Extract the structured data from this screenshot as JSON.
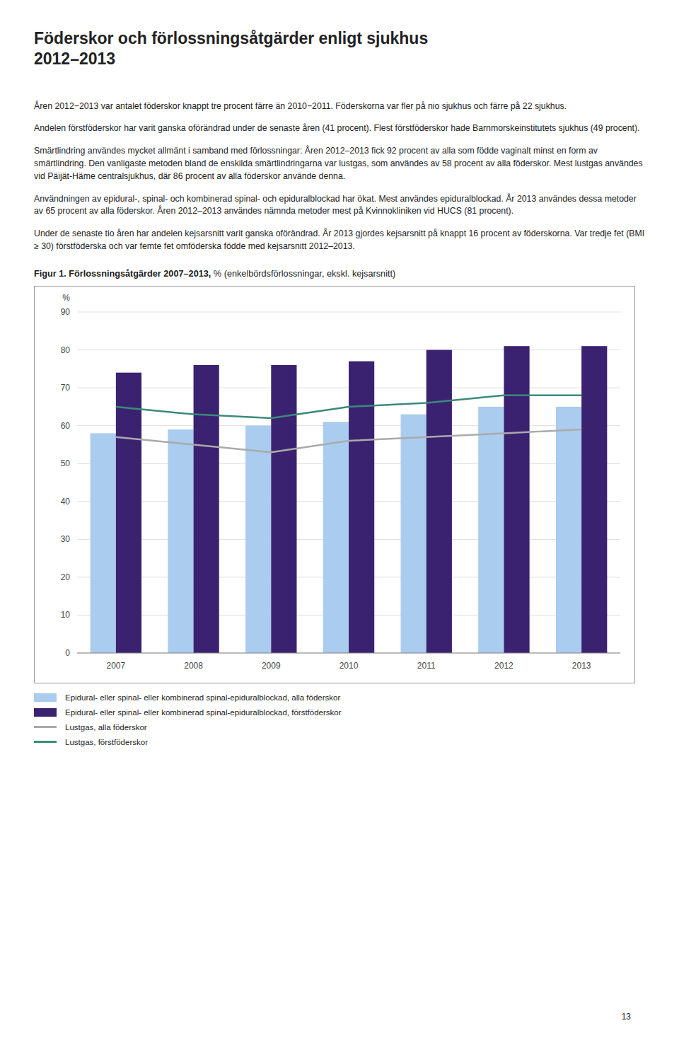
{
  "heading": [
    "Föderskor och förlossningsåtgärder enligt sjukhus",
    "2012–2013"
  ],
  "paragraphs": [
    "Åren 2012−2013 var antalet föderskor knappt tre procent färre än 2010−2011. Föderskorna var fler på nio sjukhus och färre på 22 sjukhus.",
    "Andelen förstföderskor har varit ganska oförändrad under de senaste åren (41 procent). Flest förstföderskor hade Barnmorskeinstitutets sjukhus (49 procent).",
    "Smärtlindring användes mycket allmänt i samband med förlossningar: Åren 2012–2013 fick 92 procent av alla som födde vaginalt minst en form av smärtlindring. Den vanligaste metoden bland de enskilda smärtlindringarna var lustgas, som användes av 58 procent av alla föderskor. Mest lustgas användes vid Päijät-Häme centralsjukhus, där 86 procent av alla föderskor använde denna.",
    "Användningen av epidural-, spinal- och kombinerad spinal- och epiduralblockad har ökat. Mest användes epiduralblockad. År 2013 användes dessa metoder av 65 procent av alla föderskor. Åren 2012–2013 användes nämnda metoder mest på Kvinnokliniken vid HUCS (81 procent).",
    "Under de senaste tio åren har andelen kejsarsnitt varit ganska oförändrad. År 2013 gjordes kejsarsnitt på knappt 16 procent av föderskorna. Var tredje fet (BMI ≥ 30) förstföderska och var femte fet omföderska födde med kejsarsnitt 2012–2013."
  ],
  "page_number": "13",
  "chart_data": {
    "type": "bar",
    "title": "Figur 1. Förlossningsåtgärder 2007–2013,",
    "subtitle": "% (enkelbördsförlossningar, ekskl. kejsarsnitt)",
    "categories": [
      "2007",
      "2008",
      "2009",
      "2010",
      "2011",
      "2012",
      "2013"
    ],
    "series": [
      {
        "name": "Epidural- eller spinal- eller kombinerad spinal-epiduralblockad, alla föderskor",
        "type": "bar",
        "color": "#aaccee",
        "values": [
          58,
          59,
          60,
          61,
          63,
          65,
          65
        ]
      },
      {
        "name": "Epidural- eller spinal- eller kombinerad spinal-epiduralblockad, förstföderskor",
        "type": "bar",
        "color": "#3b2270",
        "values": [
          74,
          76,
          76,
          77,
          80,
          81,
          81
        ]
      },
      {
        "name": "Lustgas, alla föderskor",
        "type": "line",
        "color": "#aaaaaa",
        "values": [
          57,
          55,
          53,
          56,
          57,
          58,
          59
        ]
      },
      {
        "name": "Lustgas, förstföderskor",
        "type": "line",
        "color": "#3a8a7a",
        "values": [
          65,
          63,
          62,
          65,
          66,
          68,
          68
        ]
      }
    ],
    "y_label": "%",
    "ylim": [
      0,
      90
    ],
    "yticks": [
      0,
      10,
      20,
      30,
      40,
      50,
      60,
      70,
      80,
      90
    ],
    "grid": true,
    "legend": "bottom"
  }
}
